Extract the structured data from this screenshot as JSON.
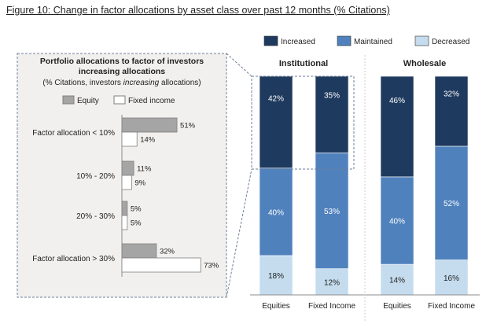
{
  "figure_title": "Figure 10: Change in factor allocations by asset class over past 12 months (% Citations)",
  "colors": {
    "increased": "#1f3a5f",
    "maintained": "#4f81bd",
    "decreased": "#c5dcee",
    "equity_bar": "#a5a5a5",
    "panel_bg": "#f2f0ee",
    "white": "#ffffff",
    "dash": "#6d7f99"
  },
  "chart_data": [
    {
      "type": "bar",
      "orientation": "horizontal",
      "title": "Portfolio allocations to factor of investors increasing allocations",
      "title_lines": [
        "Portfolio allocations to factor of investors",
        "increasing allocations"
      ],
      "subtitle_prefix": "(% Citations, investors ",
      "subtitle_emph": "increasing",
      "subtitle_suffix": " allocations)",
      "legend": [
        "Equity",
        "Fixed income"
      ],
      "legend_position": "top",
      "categories": [
        "Factor allocation < 10%",
        "10% - 20%",
        "20% - 30%",
        "Factor allocation > 30%"
      ],
      "series": [
        {
          "name": "Equity",
          "values": [
            51,
            11,
            5,
            32
          ],
          "labels": [
            "51%",
            "11%",
            "5%",
            "32%"
          ]
        },
        {
          "name": "Fixed income",
          "values": [
            14,
            9,
            5,
            73
          ],
          "labels": [
            "14%",
            "9%",
            "5%",
            "73%"
          ]
        }
      ],
      "xlim": [
        0,
        75
      ]
    },
    {
      "type": "bar",
      "stacked": true,
      "legend": [
        "Increased",
        "Maintained",
        "Decreased"
      ],
      "legend_position": "top",
      "groups": [
        {
          "title": "Institutional",
          "categories": [
            "Equities",
            "Fixed Income"
          ],
          "series": [
            {
              "name": "Decreased",
              "values": [
                18,
                12
              ],
              "labels": [
                "18%",
                "12%"
              ]
            },
            {
              "name": "Maintained",
              "values": [
                40,
                53
              ],
              "labels": [
                "40%",
                "53%"
              ]
            },
            {
              "name": "Increased",
              "values": [
                42,
                35
              ],
              "labels": [
                "42%",
                "35%"
              ]
            }
          ]
        },
        {
          "title": "Wholesale",
          "categories": [
            "Equities",
            "Fixed Income"
          ],
          "series": [
            {
              "name": "Decreased",
              "values": [
                14,
                16
              ],
              "labels": [
                "14%",
                "16%"
              ]
            },
            {
              "name": "Maintained",
              "values": [
                40,
                52
              ],
              "labels": [
                "40%",
                "52%"
              ]
            },
            {
              "name": "Increased",
              "values": [
                46,
                32
              ],
              "labels": [
                "46%",
                "32%"
              ]
            }
          ]
        }
      ],
      "ylim": [
        0,
        100
      ]
    }
  ]
}
